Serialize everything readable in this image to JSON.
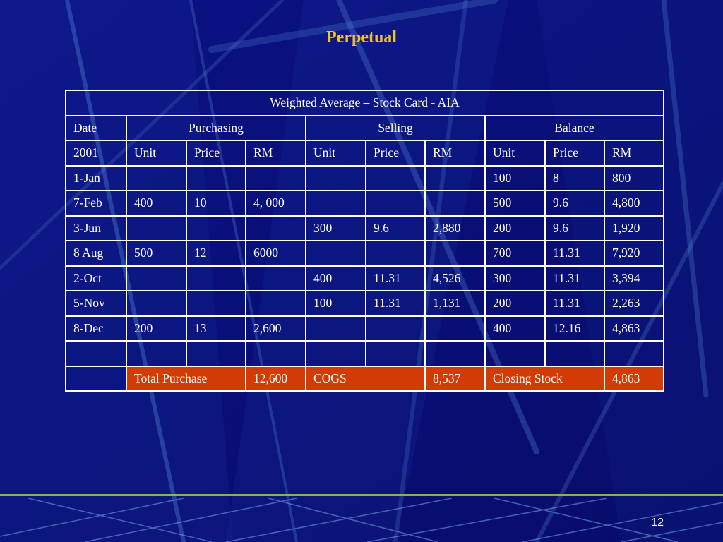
{
  "slide": {
    "title": "Perpetual",
    "page_number": "12"
  },
  "table": {
    "caption": "Weighted Average – Stock Card - AIA",
    "group_headers": {
      "date": "Date",
      "purchasing": "Purchasing",
      "selling": "Selling",
      "balance": "Balance"
    },
    "sub_headers": [
      "2001",
      "Unit",
      "Price",
      "RM",
      "Unit",
      "Price",
      "RM",
      "Unit",
      "Price",
      "RM"
    ],
    "rows": [
      [
        "1-Jan",
        "",
        "",
        "",
        "",
        "",
        "",
        "100",
        "8",
        "800"
      ],
      [
        "7-Feb",
        "400",
        "10",
        "4, 000",
        "",
        "",
        "",
        "500",
        "9.6",
        "4,800"
      ],
      [
        "3-Jun",
        "",
        "",
        "",
        "300",
        "9.6",
        "2,880",
        "200",
        "9.6",
        "1,920"
      ],
      [
        "8 Aug",
        "500",
        "12",
        "6000",
        "",
        "",
        "",
        "700",
        "11.31",
        "7,920"
      ],
      [
        "2-Oct",
        "",
        "",
        "",
        "400",
        "11.31",
        "4,526",
        "300",
        "11.31",
        "3,394"
      ],
      [
        "5-Nov",
        "",
        "",
        "",
        "100",
        "11.31",
        "1,131",
        "200",
        "11.31",
        "2,263"
      ],
      [
        "8-Dec",
        "200",
        "13",
        "2,600",
        "",
        "",
        "",
        "400",
        "12.16",
        "4,863"
      ],
      [
        "",
        "",
        "",
        "",
        "",
        "",
        "",
        "",
        "",
        ""
      ]
    ],
    "totals": {
      "total_purchase_label": "Total Purchase",
      "total_purchase_value": "12,600",
      "cogs_label": "COGS",
      "cogs_value": "8,537",
      "closing_stock_label": "Closing Stock",
      "closing_stock_value": "4,863"
    }
  }
}
